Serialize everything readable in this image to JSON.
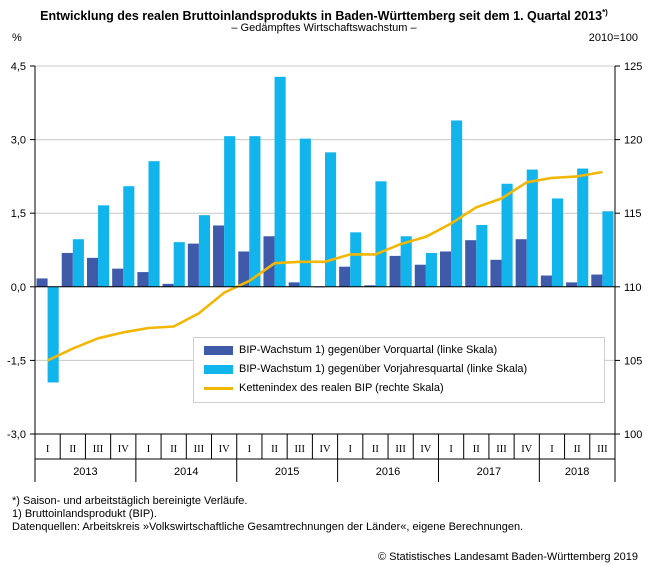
{
  "title": "Entwicklung des realen Bruttoinlandsprodukts in Baden-Württemberg seit dem 1. Quartal 2013",
  "title_mark": "*)",
  "subtitle": "– Gedämpftes Wirtschaftswachstum –",
  "left_unit": "%",
  "right_unit": "2010=100",
  "footnotes": [
    "*) Saison- und arbeitstäglich bereinigte Verläufe.",
    "1) Bruttoinlandsprodukt (BIP).",
    "Datenquellen: Arbeitskreis »Volkswirtschaftliche Gesamtrechnungen der Länder«, eigene Berechnungen."
  ],
  "copyright": "© Statistisches Landesamt Baden-Württemberg 2019",
  "colors": {
    "vorquartal": "#3f5aa8",
    "vorjahresquartal": "#12b4ec",
    "kettenindex": "#f2b705"
  },
  "chart_data": {
    "type": "bar",
    "quarters": [
      "I",
      "II",
      "III",
      "IV",
      "I",
      "II",
      "III",
      "IV",
      "I",
      "II",
      "III",
      "IV",
      "I",
      "II",
      "III",
      "IV",
      "I",
      "II",
      "III",
      "IV",
      "I",
      "II",
      "III"
    ],
    "years": [
      {
        "label": "2013",
        "count": 4
      },
      {
        "label": "2014",
        "count": 4
      },
      {
        "label": "2015",
        "count": 4
      },
      {
        "label": "2016",
        "count": 4
      },
      {
        "label": "2017",
        "count": 4
      },
      {
        "label": "2018",
        "count": 3
      }
    ],
    "left_axis": {
      "min": -3.0,
      "max": 4.5,
      "ticks": [
        "4,5",
        "3,0",
        "1,5",
        "0,0",
        "-1,5",
        "-3,0"
      ],
      "tick_values": [
        4.5,
        3.0,
        1.5,
        0.0,
        -1.5,
        -3.0
      ]
    },
    "right_axis": {
      "min": 100,
      "max": 125,
      "ticks": [
        "125",
        "120",
        "115",
        "110",
        "105",
        "100"
      ],
      "tick_values": [
        125,
        120,
        115,
        110,
        105,
        100
      ]
    },
    "series": [
      {
        "name": "BIP-Wachstum 1) gegenüber Vorquartal (linke Skala)",
        "kind": "bar",
        "values": [
          0.17,
          0.69,
          0.59,
          0.37,
          0.3,
          0.06,
          0.88,
          1.25,
          0.72,
          1.03,
          0.09,
          0.0,
          0.41,
          0.03,
          0.63,
          0.45,
          0.72,
          0.95,
          0.55,
          0.97,
          0.23,
          0.09,
          0.25
        ]
      },
      {
        "name": "BIP-Wachstum 1) gegenüber Vorjahresquartal (linke Skala)",
        "kind": "bar",
        "values": [
          -1.95,
          0.97,
          1.66,
          2.05,
          2.56,
          0.91,
          1.46,
          3.07,
          3.07,
          4.28,
          3.02,
          2.74,
          1.11,
          2.15,
          1.03,
          0.69,
          3.39,
          1.26,
          2.1,
          2.39,
          1.8,
          2.41,
          1.54
        ]
      },
      {
        "name": "Kettenindex des realen BIP (rechte Skala)",
        "kind": "line",
        "values": [
          105.0,
          105.8,
          106.5,
          106.9,
          107.2,
          107.3,
          108.2,
          109.6,
          110.4,
          111.6,
          111.7,
          111.7,
          112.2,
          112.2,
          112.9,
          113.4,
          114.3,
          115.4,
          116.0,
          117.1,
          117.4,
          117.5,
          117.8
        ]
      }
    ]
  }
}
